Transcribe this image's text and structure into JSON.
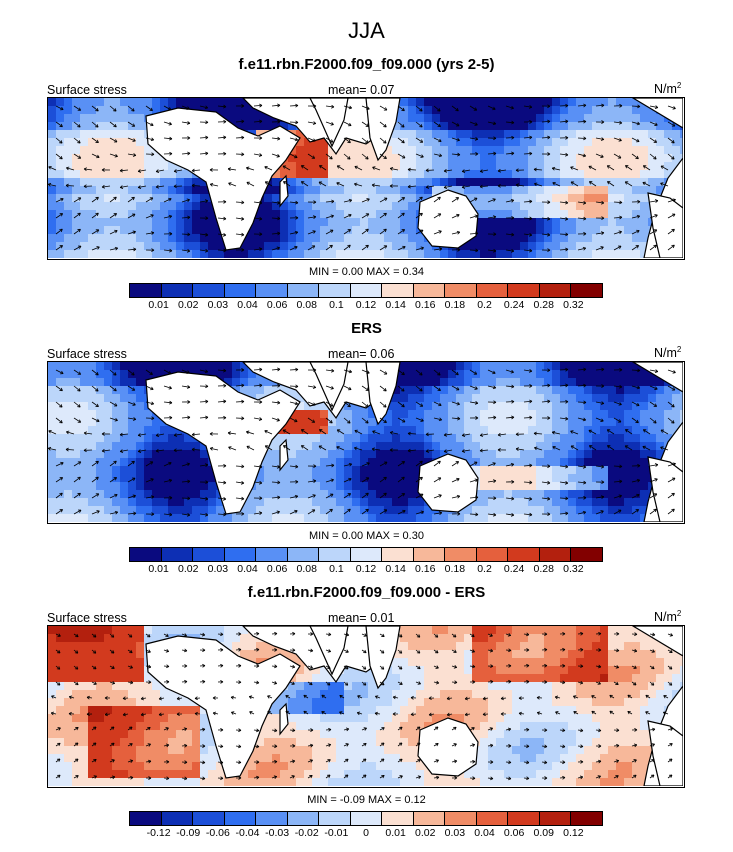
{
  "figure": {
    "title": "JJA"
  },
  "colors": {
    "abs_scale": [
      "#0a0a7f",
      "#0d2fb4",
      "#1c4fd8",
      "#2f6ef0",
      "#5990f5",
      "#8cb6f7",
      "#bcd6fa",
      "#dde9fb",
      "#fbe0d2",
      "#f7b89a",
      "#f08c66",
      "#e5603d",
      "#d23a1e",
      "#b3200e",
      "#820000"
    ],
    "diff_scale": [
      "#0a0a7f",
      "#0d2fb4",
      "#1c4fd8",
      "#2f6ef0",
      "#5990f5",
      "#8cb6f7",
      "#bcd6fa",
      "#dde9fb",
      "#fbe0d2",
      "#f7b89a",
      "#f08c66",
      "#e5603d",
      "#d23a1e",
      "#b3200e",
      "#820000"
    ],
    "land": "#ffffff"
  },
  "panels": [
    {
      "title": "f.e11.rbn.F2000.f09_f09.000 (yrs 2-5)",
      "left_label": "Surface stress",
      "mean_label": "mean=",
      "mean_value": "0.07",
      "units": "N/m",
      "units_sup": "2",
      "minmax": "MIN =  0.00 MAX =   0.34",
      "ticks": [
        "0.01",
        "0.02",
        "0.03",
        "0.04",
        "0.06",
        "0.08",
        "0.1",
        "0.12",
        "0.14",
        "0.16",
        "0.18",
        "0.2",
        "0.24",
        "0.28",
        "0.32"
      ]
    },
    {
      "title": "ERS",
      "left_label": "Surface stress",
      "mean_label": "mean=",
      "mean_value": "0.06",
      "units": "N/m",
      "units_sup": "2",
      "minmax": "MIN =  0.00 MAX =   0.30",
      "ticks": [
        "0.01",
        "0.02",
        "0.03",
        "0.04",
        "0.06",
        "0.08",
        "0.1",
        "0.12",
        "0.14",
        "0.16",
        "0.18",
        "0.2",
        "0.24",
        "0.28",
        "0.32"
      ]
    },
    {
      "title": "f.e11.rbn.F2000.f09_f09.000 - ERS",
      "left_label": "Surface stress",
      "mean_label": "mean=",
      "mean_value": "0.01",
      "units": "N/m",
      "units_sup": "2",
      "minmax": "MIN =  -0.09 MAX =   0.12",
      "ticks": [
        "-0.12",
        "-0.09",
        "-0.06",
        "-0.04",
        "-0.03",
        "-0.02",
        "-0.01",
        "0",
        "0.01",
        "0.02",
        "0.03",
        "0.04",
        "0.06",
        "0.09",
        "0.12"
      ]
    }
  ]
}
